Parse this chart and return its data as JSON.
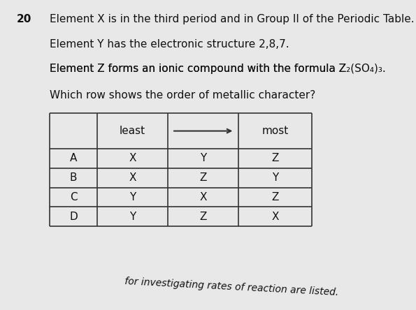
{
  "question_number": "20",
  "line1": "Element X is in the third period and in Group II of the Periodic Table.",
  "line2": "Element Y has the electronic structure 2,8,7.",
  "line3": "Element Z forms an ionic compound with the formula Z",
  "line3_sub1": "2",
  "line3_mid": "(SO",
  "line3_sub2": "4",
  "line3_end": ")₃.",
  "line4": "Which row shows the order of metallic character?",
  "col_headers": [
    "least",
    "→",
    "most"
  ],
  "rows": [
    [
      "A",
      "X",
      "Y",
      "Z"
    ],
    [
      "B",
      "X",
      "Z",
      "Y"
    ],
    [
      "C",
      "Y",
      "X",
      "Z"
    ],
    [
      "D",
      "Y",
      "Z",
      "X"
    ]
  ],
  "footer": "for investigating rates of reaction are listed.",
  "bg_color": "#e8e8e8",
  "table_bg": "#f0f0f0",
  "text_color": "#111111",
  "border_color": "#333333"
}
